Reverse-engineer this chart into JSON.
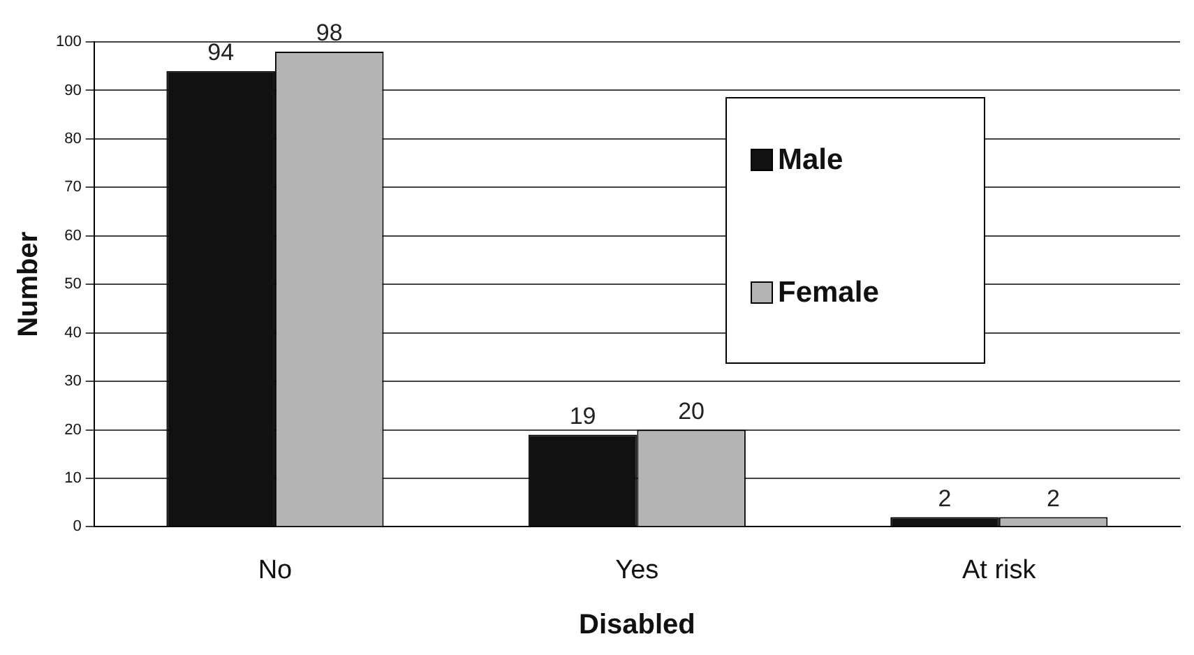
{
  "chart_data": {
    "type": "bar",
    "xlabel": "Disabled",
    "ylabel": "Number",
    "categories": [
      "No",
      "Yes",
      "At risk"
    ],
    "series": [
      {
        "name": "Male",
        "color": "#111111",
        "values": [
          94,
          19,
          2
        ]
      },
      {
        "name": "Female",
        "color": "#b4b4b4",
        "values": [
          98,
          20,
          2
        ]
      }
    ],
    "ylim": [
      0,
      100
    ],
    "yticks": [
      0,
      10,
      20,
      30,
      40,
      50,
      60,
      70,
      80,
      90,
      100
    ],
    "grid": "y",
    "legend": "right",
    "data_labels": true
  }
}
